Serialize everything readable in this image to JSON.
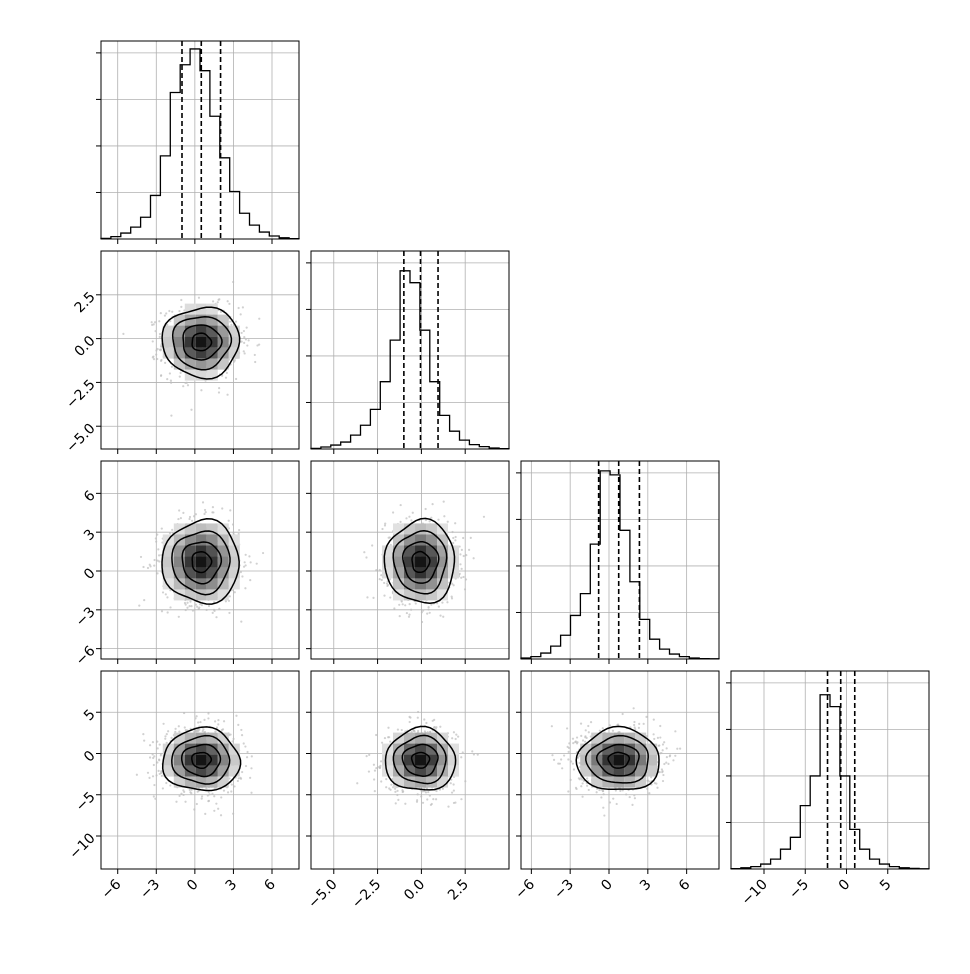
{
  "figure": {
    "type": "corner_plot",
    "n_params": 4
  },
  "chart_data": {
    "type": "corner",
    "title": "",
    "parameters": [
      {
        "index": 0,
        "label": "",
        "range": [
          -7.3,
          8.1
        ],
        "ticks": [
          -6,
          -3,
          0,
          3,
          6
        ],
        "quantiles": [
          -1.0,
          0.5,
          2.0
        ],
        "hist_bins": [
          0.003,
          0.012,
          0.03,
          0.06,
          0.11,
          0.22,
          0.42,
          0.74,
          0.88,
          0.96,
          0.85,
          0.62,
          0.41,
          0.24,
          0.13,
          0.07,
          0.035,
          0.015,
          0.006,
          0.002
        ]
      },
      {
        "index": 1,
        "label": "",
        "range": [
          -6.3,
          5.0
        ],
        "ticks": [
          -5.0,
          -2.5,
          0.0,
          2.5
        ],
        "quantiles": [
          -1.0,
          -0.05,
          0.95
        ],
        "hist_bins": [
          0.003,
          0.01,
          0.02,
          0.035,
          0.07,
          0.12,
          0.2,
          0.34,
          0.55,
          0.9,
          0.84,
          0.6,
          0.34,
          0.17,
          0.09,
          0.045,
          0.022,
          0.012,
          0.005,
          0.002
        ]
      },
      {
        "index": 2,
        "label": "",
        "range": [
          -6.8,
          8.5
        ],
        "ticks": [
          -6,
          -3,
          0,
          3,
          6
        ],
        "quantiles": [
          -0.8,
          0.75,
          2.35
        ],
        "hist_bins": [
          0.005,
          0.012,
          0.03,
          0.065,
          0.12,
          0.22,
          0.33,
          0.58,
          0.95,
          0.93,
          0.65,
          0.39,
          0.2,
          0.1,
          0.05,
          0.025,
          0.012,
          0.005,
          0.002,
          0.001
        ]
      },
      {
        "index": 3,
        "label": "",
        "range": [
          -14.0,
          10.0
        ],
        "ticks": [
          -10,
          -5,
          0,
          5
        ],
        "quantiles": [
          -2.3,
          -0.7,
          1.0
        ],
        "hist_bins": [
          0.002,
          0.006,
          0.012,
          0.025,
          0.05,
          0.1,
          0.16,
          0.32,
          0.47,
          0.88,
          0.82,
          0.47,
          0.2,
          0.1,
          0.05,
          0.025,
          0.012,
          0.006,
          0.003,
          0.001
        ]
      }
    ],
    "pairs": [
      {
        "x": 0,
        "y": 1,
        "center": [
          0.5,
          -0.2
        ],
        "sigma": [
          1.5,
          1.0
        ],
        "rho": 0.0
      },
      {
        "x": 0,
        "y": 2,
        "center": [
          0.5,
          0.7
        ],
        "sigma": [
          1.5,
          1.6
        ],
        "rho": 0.0
      },
      {
        "x": 1,
        "y": 2,
        "center": [
          -0.05,
          0.7
        ],
        "sigma": [
          1.0,
          1.6
        ],
        "rho": 0.0
      },
      {
        "x": 0,
        "y": 3,
        "center": [
          0.5,
          -0.8
        ],
        "sigma": [
          1.5,
          1.9
        ],
        "rho": 0.0
      },
      {
        "x": 1,
        "y": 3,
        "center": [
          -0.05,
          -0.8
        ],
        "sigma": [
          1.0,
          1.9
        ],
        "rho": 0.0
      },
      {
        "x": 2,
        "y": 3,
        "center": [
          0.75,
          -0.8
        ],
        "sigma": [
          1.6,
          1.9
        ],
        "rho": 0.0
      }
    ],
    "contour_levels_sigma": [
      0.5,
      1.0,
      1.5,
      2.0
    ],
    "grid": true,
    "legend": "none",
    "colors": {
      "line": "#000000",
      "scatter": "#bdbdbd",
      "grid": "#b0b0b0"
    }
  }
}
